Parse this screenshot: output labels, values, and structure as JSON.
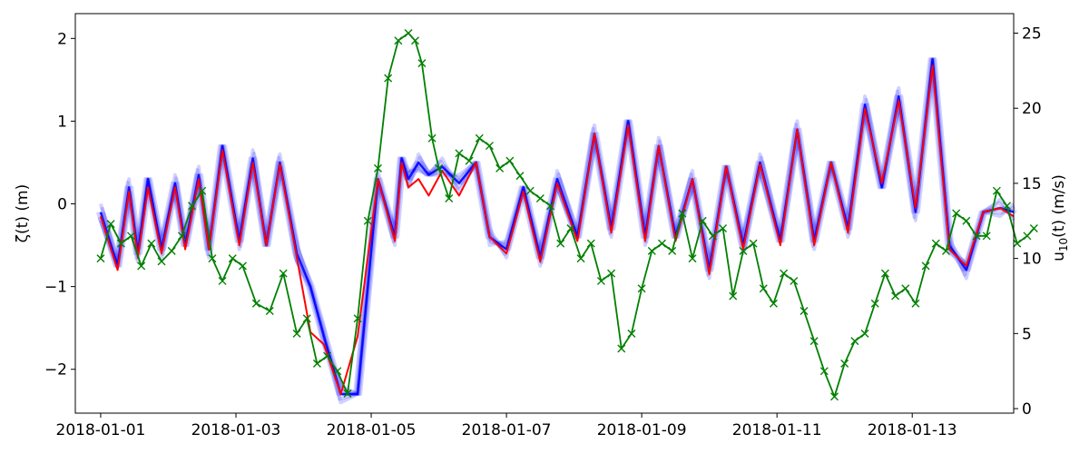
{
  "chart_data": {
    "type": "line",
    "ylabel_left": "ζ(t) (m)",
    "ylabel_right": "u10(t) (m/s)",
    "ylabel_right_parts": {
      "base": "u",
      "sub": "10",
      "rest": "(t) (m/s)"
    },
    "xlabel": "",
    "xlim": [
      "2017-12-31T15:00",
      "2018-01-14T12:00"
    ],
    "ylim_left": [
      -2.53,
      2.3
    ],
    "ylim_right": [
      -0.3,
      26.3
    ],
    "x_ticks": [
      "2018-01-01",
      "2018-01-03",
      "2018-01-05",
      "2018-01-07",
      "2018-01-09",
      "2018-01-11",
      "2018-01-13"
    ],
    "y_ticks_left": [
      2,
      1,
      0,
      -1,
      -2
    ],
    "y_ticks_left_labels": [
      "2",
      "1",
      "0",
      "−1",
      "−2"
    ],
    "y_ticks_right": [
      25,
      20,
      15,
      10,
      5,
      0
    ],
    "y_ticks_right_labels": [
      "25",
      "20",
      "15",
      "10",
      "5",
      "0"
    ],
    "grid": false,
    "legend": "none",
    "series": [
      {
        "role": "ensemble",
        "color": "#0000ff",
        "axis": "left",
        "x_days_since_start": [
          0.0,
          0.25,
          0.42,
          0.55,
          0.7,
          0.9,
          1.1,
          1.25,
          1.45,
          1.6,
          1.8,
          2.05,
          2.25,
          2.45,
          2.65,
          2.9,
          3.1,
          3.3,
          3.55,
          3.8,
          4.1,
          4.35,
          4.45,
          4.55,
          4.7,
          4.85,
          5.05,
          5.3,
          5.55,
          5.75,
          6.0,
          6.25,
          6.5,
          6.75,
          7.05,
          7.3,
          7.55,
          7.8,
          8.05,
          8.25,
          8.5,
          8.75,
          9.0,
          9.25,
          9.5,
          9.75,
          10.05,
          10.3,
          10.55,
          10.8,
          11.05,
          11.3,
          11.55,
          11.8,
          12.05,
          12.3,
          12.55,
          12.8,
          13.05,
          13.3,
          13.5
        ],
        "values": [
          -0.1,
          -0.75,
          0.2,
          -0.6,
          0.3,
          -0.55,
          0.25,
          -0.5,
          0.35,
          -0.55,
          0.7,
          -0.45,
          0.55,
          -0.5,
          0.5,
          -0.6,
          -1.0,
          -1.6,
          -2.3,
          -2.3,
          0.3,
          -0.4,
          0.55,
          0.3,
          0.5,
          0.35,
          0.45,
          0.25,
          0.5,
          -0.4,
          -0.55,
          0.2,
          -0.65,
          0.3,
          -0.4,
          0.85,
          -0.3,
          1.0,
          -0.4,
          0.7,
          -0.4,
          0.3,
          -0.8,
          0.45,
          -0.5,
          0.5,
          -0.45,
          0.9,
          -0.45,
          0.5,
          -0.3,
          1.2,
          0.2,
          1.3,
          -0.1,
          1.75,
          -0.5,
          -0.8,
          -0.1,
          -0.05,
          -0.1
        ]
      },
      {
        "role": "mean",
        "color": "#ff0000",
        "axis": "left",
        "x_days_since_start": [
          0.0,
          0.25,
          0.42,
          0.55,
          0.7,
          0.9,
          1.1,
          1.25,
          1.45,
          1.6,
          1.8,
          2.05,
          2.25,
          2.45,
          2.65,
          2.9,
          3.1,
          3.3,
          3.55,
          3.8,
          4.1,
          4.35,
          4.45,
          4.55,
          4.7,
          4.85,
          5.05,
          5.3,
          5.55,
          5.75,
          6.0,
          6.25,
          6.5,
          6.75,
          7.05,
          7.3,
          7.55,
          7.8,
          8.05,
          8.25,
          8.5,
          8.75,
          9.0,
          9.25,
          9.5,
          9.75,
          10.05,
          10.3,
          10.55,
          10.8,
          11.05,
          11.3,
          11.55,
          11.8,
          12.05,
          12.3,
          12.55,
          12.8,
          13.05,
          13.3,
          13.5
        ],
        "values": [
          -0.15,
          -0.8,
          0.15,
          -0.65,
          0.2,
          -0.6,
          0.2,
          -0.55,
          0.3,
          -0.55,
          0.65,
          -0.5,
          0.5,
          -0.5,
          0.48,
          -0.65,
          -1.55,
          -1.7,
          -2.3,
          -1.6,
          0.3,
          -0.45,
          0.5,
          0.2,
          0.3,
          0.1,
          0.4,
          0.1,
          0.5,
          -0.4,
          -0.6,
          0.15,
          -0.7,
          0.25,
          -0.45,
          0.85,
          -0.35,
          0.95,
          -0.45,
          0.7,
          -0.45,
          0.3,
          -0.85,
          0.45,
          -0.55,
          0.48,
          -0.5,
          0.9,
          -0.5,
          0.5,
          -0.35,
          1.15,
          0.25,
          1.25,
          -0.05,
          1.67,
          -0.55,
          -0.75,
          -0.1,
          -0.05,
          -0.15
        ]
      },
      {
        "role": "wind",
        "color": "#008000",
        "marker": "x",
        "axis": "right",
        "x_days_since_start": [
          0.0,
          0.15,
          0.3,
          0.45,
          0.6,
          0.75,
          0.9,
          1.05,
          1.2,
          1.35,
          1.5,
          1.65,
          1.8,
          1.95,
          2.1,
          2.3,
          2.5,
          2.7,
          2.9,
          3.05,
          3.2,
          3.35,
          3.5,
          3.65,
          3.8,
          3.95,
          4.1,
          4.25,
          4.4,
          4.55,
          4.65,
          4.75,
          4.9,
          5.0,
          5.15,
          5.3,
          5.45,
          5.6,
          5.75,
          5.9,
          6.05,
          6.2,
          6.35,
          6.5,
          6.65,
          6.8,
          6.95,
          7.1,
          7.25,
          7.4,
          7.55,
          7.7,
          7.85,
          8.0,
          8.15,
          8.3,
          8.45,
          8.6,
          8.75,
          8.9,
          9.05,
          9.2,
          9.35,
          9.5,
          9.65,
          9.8,
          9.95,
          10.1,
          10.25,
          10.4,
          10.55,
          10.7,
          10.85,
          11.0,
          11.15,
          11.3,
          11.45,
          11.6,
          11.75,
          11.9,
          12.05,
          12.2,
          12.35,
          12.5,
          12.65,
          12.8,
          12.95,
          13.1,
          13.25,
          13.4,
          13.55,
          13.7,
          13.8
        ],
        "values": [
          10.0,
          12.3,
          11.0,
          11.5,
          9.5,
          11.0,
          9.8,
          10.5,
          11.5,
          13.5,
          14.5,
          10.0,
          8.5,
          10.0,
          9.5,
          7.0,
          6.5,
          9.0,
          5.0,
          6.0,
          3.0,
          3.5,
          2.5,
          1.0,
          6.0,
          12.5,
          16.0,
          22.0,
          24.5,
          25.0,
          24.5,
          23.0,
          18.0,
          16.0,
          14.0,
          17.0,
          16.5,
          18.0,
          17.5,
          16.0,
          16.5,
          15.5,
          14.5,
          14.0,
          13.5,
          11.0,
          12.0,
          10.0,
          11.0,
          8.5,
          9.0,
          4.0,
          5.0,
          8.0,
          10.5,
          11.0,
          10.5,
          13.0,
          10.0,
          12.5,
          11.5,
          12.0,
          7.5,
          10.5,
          11.0,
          8.0,
          7.0,
          9.0,
          8.5,
          6.5,
          4.5,
          2.5,
          0.8,
          3.0,
          4.5,
          5.0,
          7.0,
          9.0,
          7.5,
          8.0,
          7.0,
          9.5,
          11.0,
          10.5,
          13.0,
          12.5,
          11.5,
          11.5,
          14.5,
          13.5,
          11.0,
          11.5,
          12.0
        ]
      }
    ]
  }
}
